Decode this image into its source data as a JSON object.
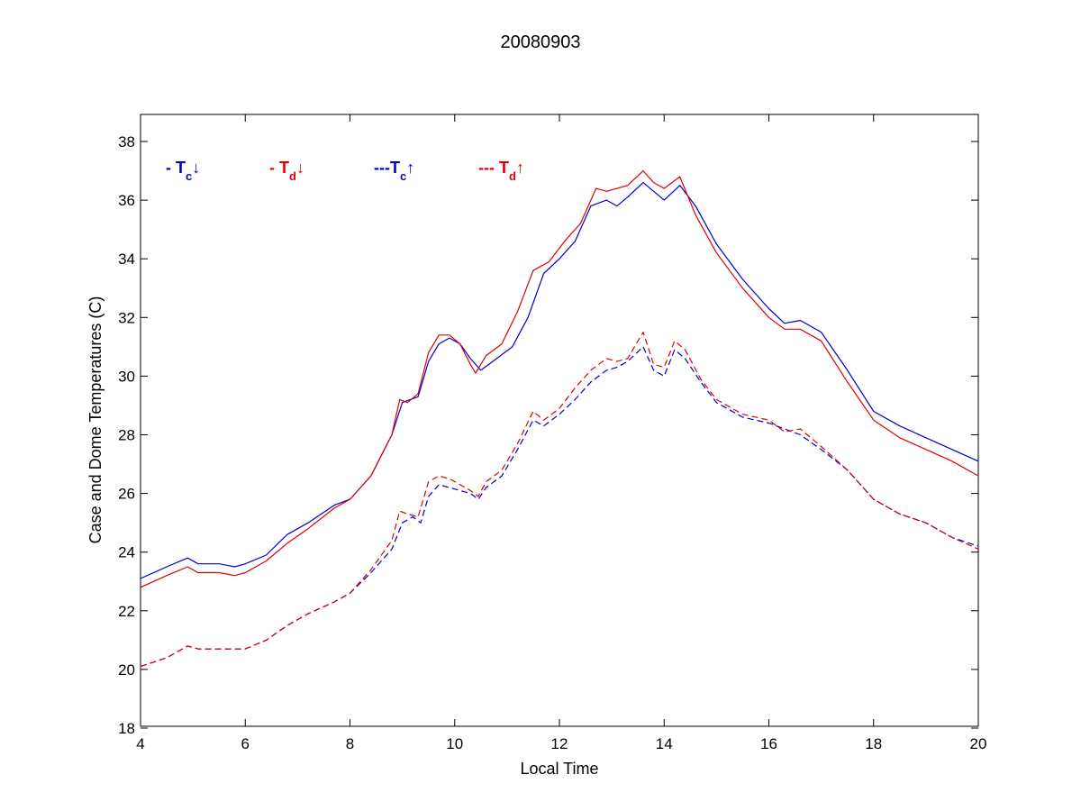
{
  "chart_data": {
    "type": "line",
    "title": "20080903",
    "xlabel": "Local Time",
    "ylabel": "Case and Dome Temperatures (C)",
    "xlim": [
      4,
      20
    ],
    "ylim": [
      18,
      39
    ],
    "x_ticks": [
      4,
      6,
      8,
      10,
      12,
      14,
      16,
      18,
      20
    ],
    "y_ticks": [
      18,
      20,
      22,
      24,
      26,
      28,
      30,
      32,
      34,
      36,
      38
    ],
    "grid": false,
    "legend_position": "top-left inside",
    "series": [
      {
        "name": "- Tc↓",
        "legend_main": "- T",
        "legend_sub": "c",
        "legend_arrow": "↓",
        "color": "#0000cc",
        "dash": "solid",
        "x": [
          4.0,
          4.5,
          4.9,
          5.1,
          5.5,
          5.8,
          6.0,
          6.4,
          6.8,
          7.2,
          7.7,
          8.0,
          8.4,
          8.8,
          9.0,
          9.3,
          9.5,
          9.7,
          9.9,
          10.1,
          10.3,
          10.5,
          10.8,
          11.1,
          11.4,
          11.7,
          12.0,
          12.3,
          12.6,
          12.9,
          13.1,
          13.3,
          13.6,
          13.8,
          14.0,
          14.3,
          14.6,
          15.0,
          15.5,
          16.0,
          16.3,
          16.6,
          17.0,
          17.5,
          18.0,
          18.5,
          19.0,
          19.5,
          20.0
        ],
        "values": [
          23.1,
          23.5,
          23.8,
          23.6,
          23.6,
          23.5,
          23.6,
          23.9,
          24.6,
          25.0,
          25.6,
          25.8,
          26.6,
          28.0,
          29.1,
          29.3,
          30.5,
          31.1,
          31.3,
          31.1,
          30.6,
          30.2,
          30.6,
          31.0,
          32.0,
          33.5,
          34.0,
          34.6,
          35.8,
          36.0,
          35.8,
          36.1,
          36.6,
          36.3,
          36.0,
          36.5,
          35.8,
          34.5,
          33.3,
          32.3,
          31.8,
          31.9,
          31.5,
          30.2,
          28.8,
          28.3,
          27.9,
          27.5,
          27.1
        ]
      },
      {
        "name": "- Td↓",
        "legend_main": "- T",
        "legend_sub": "d",
        "legend_arrow": "↓",
        "color": "#dd0000",
        "dash": "solid",
        "x": [
          4.0,
          4.5,
          4.9,
          5.1,
          5.5,
          5.8,
          6.0,
          6.4,
          6.8,
          7.2,
          7.7,
          8.0,
          8.4,
          8.8,
          8.95,
          9.1,
          9.3,
          9.5,
          9.7,
          9.9,
          10.1,
          10.3,
          10.4,
          10.6,
          10.9,
          11.2,
          11.5,
          11.8,
          12.1,
          12.4,
          12.7,
          12.9,
          13.1,
          13.3,
          13.6,
          13.8,
          14.0,
          14.3,
          14.6,
          15.0,
          15.5,
          16.0,
          16.3,
          16.6,
          17.0,
          17.5,
          18.0,
          18.5,
          19.0,
          19.5,
          20.0
        ],
        "values": [
          22.8,
          23.2,
          23.5,
          23.3,
          23.3,
          23.2,
          23.3,
          23.7,
          24.3,
          24.8,
          25.5,
          25.8,
          26.6,
          28.0,
          29.2,
          29.1,
          29.4,
          30.8,
          31.4,
          31.4,
          31.1,
          30.4,
          30.1,
          30.7,
          31.1,
          32.2,
          33.6,
          33.9,
          34.6,
          35.2,
          36.4,
          36.3,
          36.4,
          36.5,
          37.0,
          36.6,
          36.4,
          36.8,
          35.5,
          34.2,
          33.0,
          32.0,
          31.6,
          31.6,
          31.2,
          29.8,
          28.5,
          27.9,
          27.5,
          27.1,
          26.6
        ]
      },
      {
        "name": "---Tc↑",
        "legend_main": "---T",
        "legend_sub": "c",
        "legend_arrow": "↑",
        "color": "#0000cc",
        "dash": "dashed",
        "x": [
          4.0,
          4.5,
          4.9,
          5.1,
          5.5,
          5.8,
          6.0,
          6.4,
          6.8,
          7.2,
          7.7,
          8.0,
          8.4,
          8.8,
          9.0,
          9.2,
          9.35,
          9.5,
          9.7,
          9.9,
          10.1,
          10.3,
          10.45,
          10.6,
          10.9,
          11.2,
          11.5,
          11.7,
          12.0,
          12.3,
          12.6,
          12.9,
          13.1,
          13.3,
          13.6,
          13.8,
          14.0,
          14.2,
          14.4,
          14.7,
          15.0,
          15.5,
          16.0,
          16.3,
          16.6,
          17.0,
          17.5,
          18.0,
          18.5,
          19.0,
          19.5,
          20.0
        ],
        "values": [
          20.1,
          20.4,
          20.8,
          20.7,
          20.7,
          20.7,
          20.7,
          21.0,
          21.5,
          21.9,
          22.3,
          22.6,
          23.3,
          24.1,
          25.0,
          25.2,
          25.0,
          25.9,
          26.3,
          26.2,
          26.1,
          26.0,
          25.8,
          26.2,
          26.6,
          27.5,
          28.5,
          28.3,
          28.7,
          29.2,
          29.8,
          30.2,
          30.3,
          30.5,
          31.0,
          30.2,
          30.0,
          30.9,
          30.6,
          29.8,
          29.1,
          28.6,
          28.4,
          28.2,
          28.0,
          27.5,
          26.8,
          25.8,
          25.3,
          25.0,
          24.5,
          24.2
        ]
      },
      {
        "name": "--- Td↑",
        "legend_main": "--- T",
        "legend_sub": "d",
        "legend_arrow": "↑",
        "color": "#dd0000",
        "dash": "dashed",
        "x": [
          4.0,
          4.5,
          4.9,
          5.1,
          5.5,
          5.8,
          6.0,
          6.4,
          6.8,
          7.2,
          7.7,
          8.0,
          8.4,
          8.8,
          8.95,
          9.1,
          9.3,
          9.5,
          9.7,
          9.9,
          10.1,
          10.3,
          10.45,
          10.6,
          10.9,
          11.2,
          11.5,
          11.7,
          12.0,
          12.3,
          12.6,
          12.9,
          13.1,
          13.3,
          13.6,
          13.8,
          14.0,
          14.2,
          14.4,
          14.7,
          15.0,
          15.5,
          16.0,
          16.3,
          16.6,
          17.0,
          17.5,
          18.0,
          18.5,
          19.0,
          19.5,
          20.0
        ],
        "values": [
          20.1,
          20.4,
          20.8,
          20.7,
          20.7,
          20.7,
          20.7,
          21.0,
          21.5,
          21.9,
          22.3,
          22.6,
          23.4,
          24.4,
          25.4,
          25.3,
          25.2,
          26.4,
          26.6,
          26.5,
          26.3,
          26.1,
          25.9,
          26.4,
          26.8,
          27.7,
          28.8,
          28.5,
          28.9,
          29.6,
          30.2,
          30.6,
          30.5,
          30.6,
          31.5,
          30.4,
          30.3,
          31.2,
          30.9,
          29.9,
          29.2,
          28.7,
          28.5,
          28.1,
          28.2,
          27.6,
          26.8,
          25.8,
          25.3,
          25.0,
          24.5,
          24.1
        ]
      }
    ]
  }
}
